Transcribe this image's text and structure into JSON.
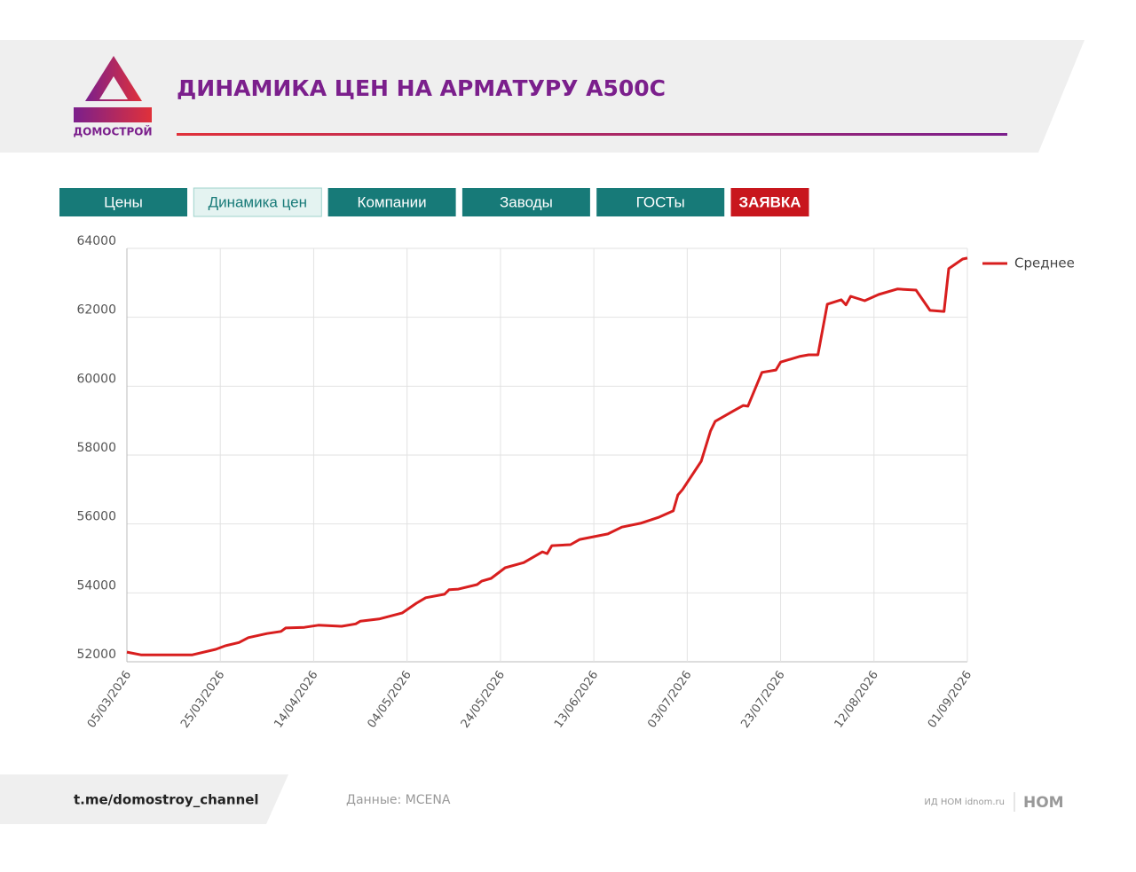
{
  "header": {
    "logo_text": "ДОМОСТРОЙ",
    "title": "ДИНАМИКА ЦЕН НА АРМАТУРУ А500С"
  },
  "nav": [
    "Цены",
    "Динамика цен",
    "Компании",
    "Заводы",
    "ГОСТы",
    "ЗАЯВКА"
  ],
  "chart_data": {
    "type": "line",
    "x": [
      "05/03/2026",
      "08/03/2026",
      "19/03/2026",
      "24/03/2026",
      "26/03/2026",
      "29/03/2026",
      "31/03/2026",
      "04/04/2026",
      "07/04/2026",
      "08/04/2026",
      "12/04/2026",
      "15/04/2026",
      "20/04/2026",
      "23/04/2026",
      "24/04/2026",
      "28/04/2026",
      "03/05/2026",
      "06/05/2026",
      "08/05/2026",
      "12/05/2026",
      "13/05/2026",
      "15/05/2026",
      "19/05/2026",
      "20/05/2026",
      "22/05/2026",
      "25/05/2026",
      "29/05/2026",
      "02/06/2026",
      "03/06/2026",
      "04/06/2026",
      "08/06/2026",
      "10/06/2026",
      "16/06/2026",
      "19/06/2026",
      "23/06/2026",
      "27/06/2026",
      "30/06/2026",
      "01/07/2026",
      "02/07/2026",
      "06/07/2026",
      "08/07/2026",
      "09/07/2026",
      "13/07/2026",
      "15/07/2026",
      "16/07/2026",
      "19/07/2026",
      "22/07/2026",
      "23/07/2026",
      "27/07/2026",
      "29/07/2026",
      "31/07/2026",
      "02/08/2026",
      "05/08/2026",
      "06/08/2026",
      "07/08/2026",
      "10/08/2026",
      "13/08/2026",
      "17/08/2026",
      "21/08/2026",
      "24/08/2026",
      "27/08/2026",
      "28/08/2026",
      "31/08/2026",
      "01/09/2026"
    ],
    "series": [
      {
        "name": "Среднее",
        "color": "#d81e1e",
        "values": [
          52280,
          52200,
          52200,
          52360,
          52460,
          52560,
          52700,
          52820,
          52880,
          52980,
          53000,
          53060,
          53030,
          53100,
          53180,
          53240,
          53420,
          53700,
          53860,
          53960,
          54090,
          54110,
          54240,
          54340,
          54420,
          54730,
          54880,
          55190,
          55140,
          55370,
          55400,
          55550,
          55710,
          55910,
          56020,
          56200,
          56380,
          56840,
          57000,
          57820,
          58700,
          58980,
          59290,
          59440,
          59420,
          60400,
          60470,
          60700,
          60860,
          60910,
          60910,
          62380,
          62510,
          62360,
          62610,
          62480,
          62660,
          62820,
          62790,
          62200,
          62170,
          63410,
          63690,
          63720
        ]
      }
    ],
    "xlim": [
      "05/03/2026",
      "01/09/2026"
    ],
    "xticks": [
      "05/03/2026",
      "25/03/2026",
      "14/04/2026",
      "04/05/2026",
      "24/05/2026",
      "13/06/2026",
      "03/07/2026",
      "23/07/2026",
      "12/08/2026",
      "01/09/2026"
    ],
    "ylim": [
      52000,
      64000
    ],
    "yticks": [
      52000,
      54000,
      56000,
      58000,
      60000,
      62000,
      64000
    ],
    "grid": true,
    "legend": "right"
  },
  "footer": {
    "channel": "t.me/domostroy_channel",
    "source": "Данные: MCENA",
    "publisher": "ИД НОМ idnom.ru",
    "brand": "НОМ"
  }
}
